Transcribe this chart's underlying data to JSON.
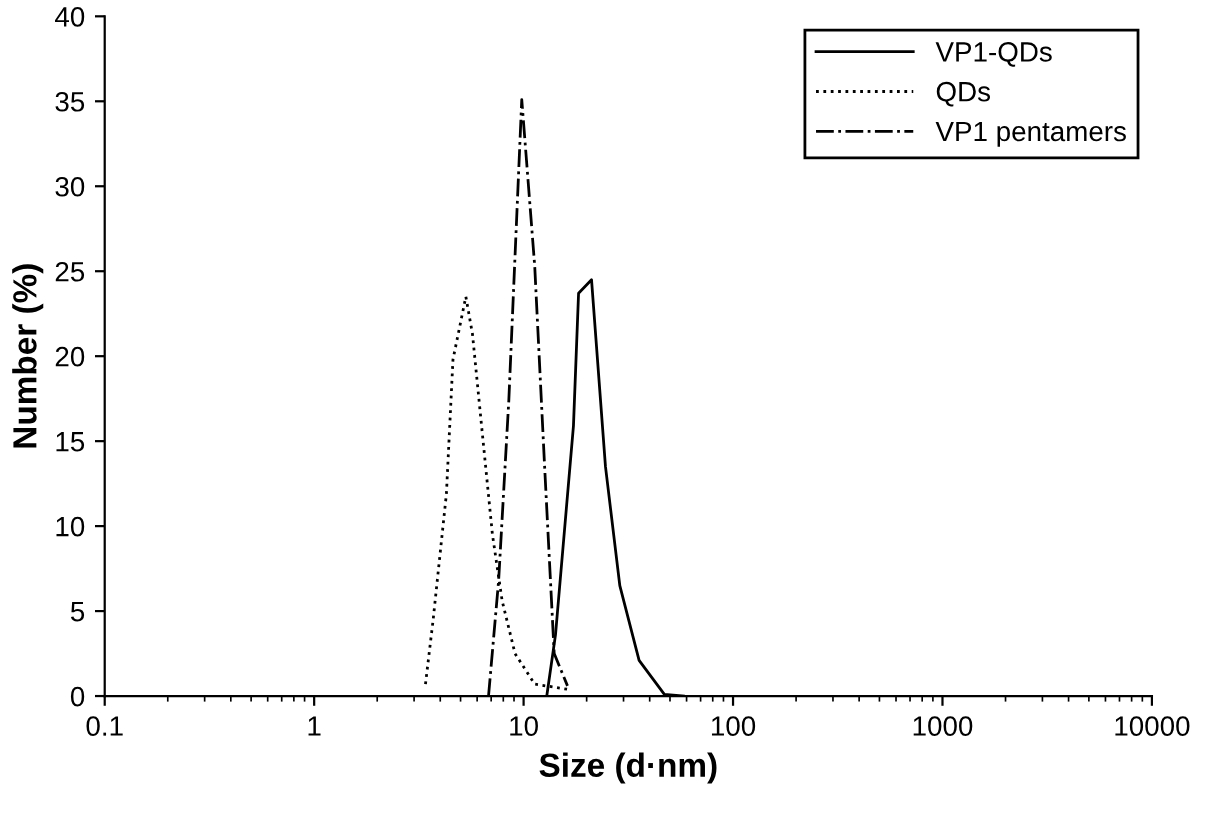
{
  "chart_data": {
    "type": "line",
    "xlabel": "Size (d·nm)",
    "ylabel": "Number (%)",
    "log": "x",
    "xlim": [
      0.1,
      10000
    ],
    "xticks": [
      0.1,
      1,
      10,
      100,
      1000,
      10000
    ],
    "ylim": [
      0,
      40
    ],
    "yticks": [
      0,
      5,
      10,
      15,
      20,
      25,
      30,
      35,
      40
    ],
    "grid": false,
    "legend": "top right",
    "marker": "none",
    "series": [
      {
        "name": "VP1-QDs",
        "color": "#000000",
        "line_style": "solid",
        "x": [
          12.9,
          14.2,
          17.3,
          18.3,
          21.1,
          24.6,
          28.8,
          35.6,
          47,
          58
        ],
        "values": [
          0,
          3.6,
          15.9,
          23.7,
          24.5,
          13.5,
          6.5,
          2.1,
          0.1,
          0
        ]
      },
      {
        "name": "QDs",
        "color": "#000000",
        "line_style": "dotted",
        "x": [
          3.4,
          3.7,
          4.28,
          4.6,
          5.3,
          5.7,
          6.3,
          7.1,
          7.9,
          9.1,
          11.3,
          16.2
        ],
        "values": [
          0.7,
          4.5,
          11.9,
          19.8,
          23.5,
          21.3,
          15.9,
          9.5,
          5.6,
          2.5,
          0.7,
          0.4
        ]
      },
      {
        "name": "VP1 pentamers",
        "color": "#000000",
        "line_style": "dashdot",
        "x": [
          6.8,
          7.6,
          8.5,
          9.8,
          11.3,
          12.6,
          14.0,
          16.2
        ],
        "values": [
          0,
          6.8,
          17.4,
          35.1,
          25.3,
          13.5,
          2.5,
          0.6
        ]
      }
    ]
  }
}
